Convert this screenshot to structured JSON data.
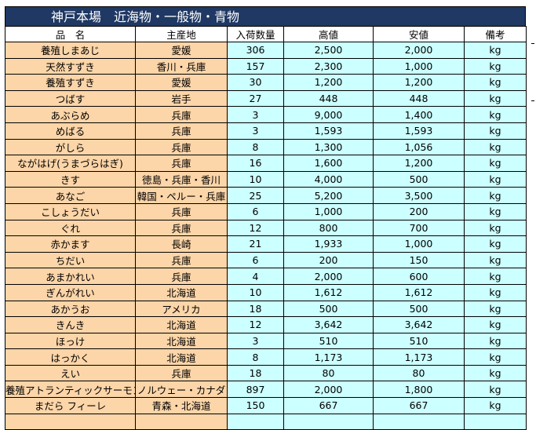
{
  "title": "神戸本場　近海物・一般物・青物",
  "headers": [
    "品　名",
    "主産地",
    "入荷数量",
    "高値",
    "安値",
    "備考"
  ],
  "rows": [
    {
      "name": "養殖しまあじ",
      "origin": "愛媛",
      "qty": "306",
      "high": "2,500",
      "low": "2,000",
      "unit": "kg"
    },
    {
      "name": "天然すずき",
      "origin": "香川・兵庫",
      "qty": "157",
      "high": "2,300",
      "low": "1,000",
      "unit": "kg"
    },
    {
      "name": "養殖すずき",
      "origin": "愛媛",
      "qty": "30",
      "high": "1,200",
      "low": "1,200",
      "unit": "kg"
    },
    {
      "name": "つばす",
      "origin": "岩手",
      "qty": "27",
      "high": "448",
      "low": "448",
      "unit": "kg"
    },
    {
      "name": "あぶらめ",
      "origin": "兵庫",
      "qty": "3",
      "high": "9,000",
      "low": "1,400",
      "unit": "kg"
    },
    {
      "name": "めばる",
      "origin": "兵庫",
      "qty": "3",
      "high": "1,593",
      "low": "1,593",
      "unit": "kg"
    },
    {
      "name": "がしら",
      "origin": "兵庫",
      "qty": "8",
      "high": "1,300",
      "low": "1,056",
      "unit": "kg"
    },
    {
      "name": "ながはげ(うまづらはぎ)",
      "origin": "兵庫",
      "qty": "16",
      "high": "1,600",
      "low": "1,200",
      "unit": "kg"
    },
    {
      "name": "きす",
      "origin": "徳島・兵庫・香川",
      "qty": "10",
      "high": "4,000",
      "low": "500",
      "unit": "kg"
    },
    {
      "name": "あなご",
      "origin": "韓国・ペルー・兵庫",
      "qty": "25",
      "high": "5,200",
      "low": "3,500",
      "unit": "kg"
    },
    {
      "name": "こしょうだい",
      "origin": "兵庫",
      "qty": "6",
      "high": "1,000",
      "low": "200",
      "unit": "kg"
    },
    {
      "name": "ぐれ",
      "origin": "兵庫",
      "qty": "12",
      "high": "800",
      "low": "700",
      "unit": "kg"
    },
    {
      "name": "赤かます",
      "origin": "長崎",
      "qty": "21",
      "high": "1,933",
      "low": "1,000",
      "unit": "kg"
    },
    {
      "name": "ちだい",
      "origin": "兵庫",
      "qty": "6",
      "high": "200",
      "low": "150",
      "unit": "kg"
    },
    {
      "name": "あまかれい",
      "origin": "兵庫",
      "qty": "4",
      "high": "2,000",
      "low": "600",
      "unit": "kg"
    },
    {
      "name": "ぎんがれい",
      "origin": "北海道",
      "qty": "10",
      "high": "1,612",
      "low": "1,612",
      "unit": "kg"
    },
    {
      "name": "あかうお",
      "origin": "アメリカ",
      "qty": "18",
      "high": "500",
      "low": "500",
      "unit": "kg"
    },
    {
      "name": "きんき",
      "origin": "北海道",
      "qty": "12",
      "high": "3,642",
      "low": "3,642",
      "unit": "kg"
    },
    {
      "name": "ほっけ",
      "origin": "北海道",
      "qty": "3",
      "high": "510",
      "low": "510",
      "unit": "kg"
    },
    {
      "name": "はっかく",
      "origin": "北海道",
      "qty": "8",
      "high": "1,173",
      "low": "1,173",
      "unit": "kg"
    },
    {
      "name": "えい",
      "origin": "兵庫",
      "qty": "18",
      "high": "80",
      "low": "80",
      "unit": "kg"
    },
    {
      "name": "養殖アトランティックサーモン",
      "origin": "ノルウェー・カナダ",
      "qty": "897",
      "high": "2,000",
      "low": "1,800",
      "unit": "kg"
    },
    {
      "name": "まだら フィーレ",
      "origin": "青森・北海道",
      "qty": "150",
      "high": "667",
      "low": "667",
      "unit": "kg"
    },
    {
      "name": "",
      "origin": "",
      "qty": "",
      "high": "",
      "low": "",
      "unit": ""
    }
  ],
  "colors": {
    "title_bg": "#1f3864",
    "name_bg": "#fcd5a8",
    "value_bg": "#ccffff"
  }
}
